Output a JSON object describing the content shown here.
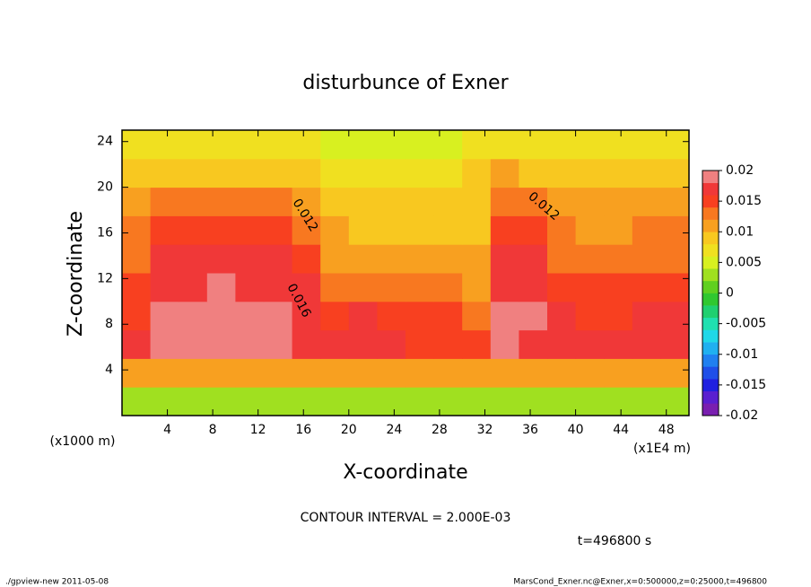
{
  "chart_data": {
    "type": "contour",
    "title": "disturbunce of Exner",
    "xlabel": "X-coordinate",
    "ylabel": "Z-coordinate",
    "y_unit": "(x1000 m)",
    "x_unit": "(x1E4 m)",
    "xlim": [
      0,
      50
    ],
    "ylim": [
      0,
      25
    ],
    "xticks": [
      4,
      8,
      12,
      16,
      20,
      24,
      28,
      32,
      36,
      40,
      44,
      48
    ],
    "yticks": [
      4,
      8,
      12,
      16,
      20,
      24
    ],
    "x": [
      1.25,
      3.75,
      6.25,
      8.75,
      11.25,
      13.75,
      16.25,
      18.75,
      21.25,
      23.75,
      26.25,
      28.75,
      31.25,
      33.75,
      36.25,
      38.75,
      41.25,
      43.75,
      46.25,
      48.75
    ],
    "y": [
      1.25,
      3.75,
      6.25,
      8.75,
      11.25,
      13.75,
      16.25,
      18.75,
      21.25,
      23.75
    ],
    "z": [
      [
        0.003,
        0.003,
        0.003,
        0.003,
        0.003,
        0.003,
        0.003,
        0.003,
        0.003,
        0.003,
        0.003,
        0.003,
        0.003,
        0.003,
        0.003,
        0.003,
        0.003,
        0.003,
        0.003,
        0.003
      ],
      [
        0.011,
        0.011,
        0.011,
        0.011,
        0.011,
        0.011,
        0.011,
        0.011,
        0.01,
        0.01,
        0.01,
        0.01,
        0.01,
        0.011,
        0.011,
        0.011,
        0.011,
        0.011,
        0.011,
        0.011
      ],
      [
        0.016,
        0.018,
        0.019,
        0.019,
        0.019,
        0.018,
        0.017,
        0.016,
        0.016,
        0.016,
        0.015,
        0.015,
        0.014,
        0.018,
        0.017,
        0.016,
        0.016,
        0.016,
        0.016,
        0.016
      ],
      [
        0.015,
        0.018,
        0.019,
        0.019,
        0.019,
        0.018,
        0.017,
        0.015,
        0.016,
        0.015,
        0.015,
        0.015,
        0.013,
        0.019,
        0.018,
        0.016,
        0.015,
        0.015,
        0.016,
        0.016
      ],
      [
        0.014,
        0.017,
        0.017,
        0.018,
        0.017,
        0.017,
        0.016,
        0.013,
        0.012,
        0.012,
        0.012,
        0.012,
        0.011,
        0.017,
        0.017,
        0.015,
        0.014,
        0.014,
        0.014,
        0.014
      ],
      [
        0.013,
        0.016,
        0.016,
        0.016,
        0.016,
        0.016,
        0.015,
        0.011,
        0.01,
        0.01,
        0.01,
        0.01,
        0.01,
        0.016,
        0.016,
        0.013,
        0.013,
        0.013,
        0.013,
        0.013
      ],
      [
        0.012,
        0.014,
        0.015,
        0.015,
        0.015,
        0.014,
        0.013,
        0.01,
        0.009,
        0.009,
        0.009,
        0.009,
        0.009,
        0.015,
        0.014,
        0.012,
        0.011,
        0.011,
        0.012,
        0.012
      ],
      [
        0.011,
        0.012,
        0.013,
        0.013,
        0.013,
        0.012,
        0.011,
        0.009,
        0.008,
        0.008,
        0.008,
        0.008,
        0.008,
        0.013,
        0.012,
        0.011,
        0.01,
        0.01,
        0.01,
        0.011
      ],
      [
        0.009,
        0.009,
        0.009,
        0.009,
        0.009,
        0.009,
        0.008,
        0.007,
        0.006,
        0.006,
        0.006,
        0.006,
        0.008,
        0.01,
        0.009,
        0.009,
        0.009,
        0.009,
        0.009,
        0.009
      ],
      [
        0.007,
        0.007,
        0.007,
        0.007,
        0.007,
        0.007,
        0.006,
        0.005,
        0.005,
        0.004,
        0.004,
        0.004,
        0.006,
        0.007,
        0.007,
        0.007,
        0.007,
        0.007,
        0.007,
        0.007
      ]
    ],
    "levels": [
      -0.02,
      -0.018,
      -0.016,
      -0.014,
      -0.012,
      -0.01,
      -0.008,
      -0.006,
      -0.004,
      -0.002,
      0,
      0.002,
      0.004,
      0.006,
      0.008,
      0.01,
      0.012,
      0.014,
      0.016,
      0.018,
      0.02
    ],
    "colors": [
      "#7a1fb0",
      "#5a1fd0",
      "#2020e0",
      "#1f4fe8",
      "#2080f0",
      "#20b0f0",
      "#20d8e8",
      "#20e0b0",
      "#20d070",
      "#30c830",
      "#60d020",
      "#a0e020",
      "#d8f020",
      "#f0e020",
      "#f8c820",
      "#f8a020",
      "#f87820",
      "#f84020",
      "#f03838",
      "#f08080"
    ],
    "colorbar_ticks": [
      0.02,
      0.015,
      0.01,
      0.005,
      0,
      -0.005,
      -0.01,
      -0.015,
      -0.02
    ],
    "contour_labels": [
      0.012,
      0.016,
      0.012
    ],
    "note": "CONTOUR INTERVAL = 2.000E-03",
    "time": "t=496800 s",
    "footer_left": "./gpview-new   2011-05-08",
    "footer_right": "MarsCond_Exner.nc@Exner,x=0:500000,z=0:25000,t=496800"
  }
}
